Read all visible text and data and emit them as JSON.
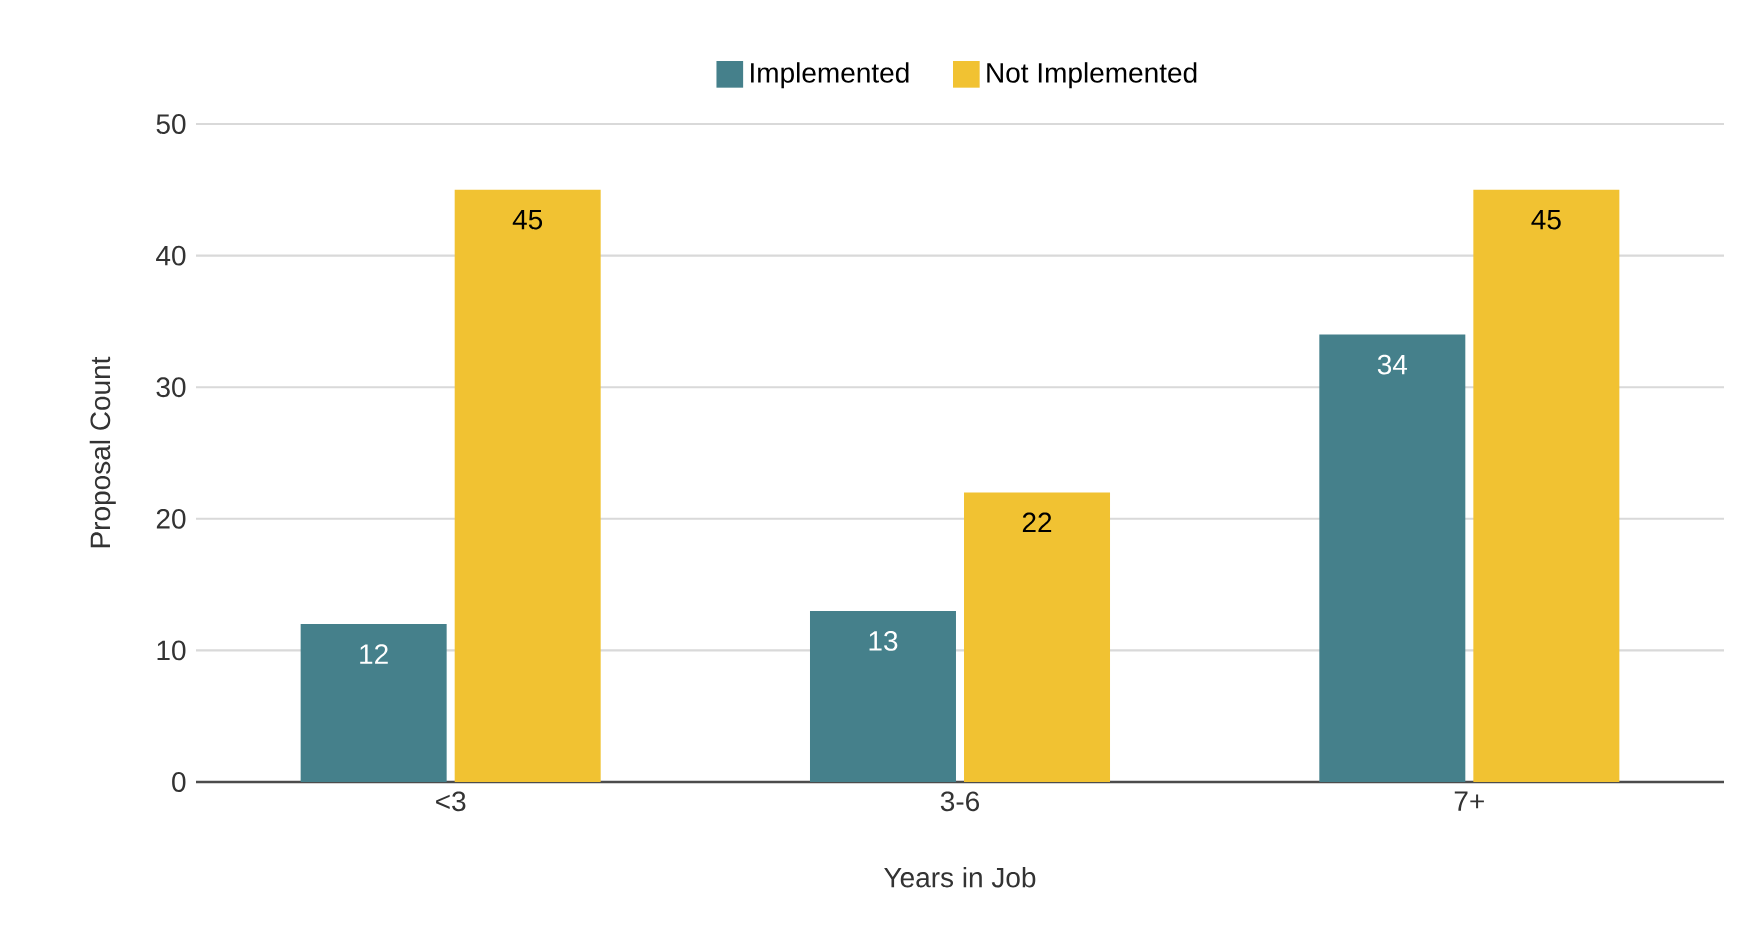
{
  "chart_data": {
    "type": "bar",
    "xlabel": "Years in Job",
    "ylabel": "Proposal Count",
    "categories": [
      "<3",
      "3-6",
      "7+"
    ],
    "series": [
      {
        "name": "Implemented",
        "color": "#45808b",
        "values": [
          12,
          13,
          34
        ]
      },
      {
        "name": "Not Implemented",
        "color": "#f1c232",
        "values": [
          45,
          22,
          45
        ]
      }
    ],
    "ylim": [
      0,
      50
    ],
    "yticks": [
      0,
      10,
      20,
      30,
      40,
      50
    ],
    "grid": "y",
    "legend": "top",
    "data_labels": true
  }
}
